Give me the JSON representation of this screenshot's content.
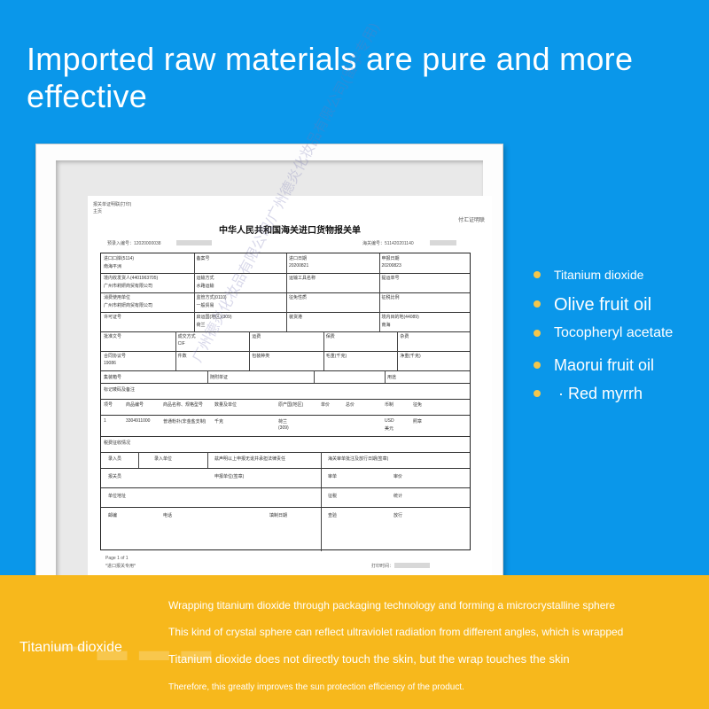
{
  "headline": "Imported raw materials are pure and more effective",
  "document": {
    "corner_note": "报关单证明联(打印)",
    "corner_sub": "主页",
    "right_tag": "付汇证明联",
    "title": "中华人民共和国海关进口货物报关单",
    "pre_entry": "预录入编号：12020000038",
    "customs_no": "海关编号：511420201140",
    "rows": [
      [
        "进口口岸(5114)",
        "备案号",
        "进口日期",
        "申报日期"
      ],
      [
        "南海平洲",
        "",
        "20200821",
        "20200823"
      ],
      [
        "境内收发货人(4401963705)",
        "运输方式",
        "运输工具名称",
        "提运单号"
      ],
      [
        "广州市莉妍商贸有限公司",
        "水路运输",
        "",
        ""
      ],
      [
        "消费使用单位",
        "监管方式(0110)",
        "征免性质",
        "征税比例"
      ],
      [
        "广州市莉妍商贸有限公司",
        "一般贸易",
        "",
        ""
      ],
      [
        "许可证号",
        "启运国(地区)(309)",
        "装货港",
        "境内目的地(44089)"
      ],
      [
        "",
        "荷兰",
        "",
        "南海"
      ],
      [
        "批准文号",
        "成交方式",
        "运费",
        "保费",
        "杂费"
      ],
      [
        "",
        "CIF",
        "",
        "",
        ""
      ],
      [
        "合同协议号",
        "件数",
        "包装种类",
        "毛重(千克)",
        "净重(千克)"
      ],
      [
        "19086",
        "",
        "",
        "",
        ""
      ],
      [
        "集装箱号",
        "随附单证",
        "",
        "用途"
      ],
      [
        "标记唛码及备注",
        "",
        "",
        ""
      ],
      [
        "项号",
        "商品编号",
        "商品名称、规格型号",
        "数量及单位",
        "原产国(地区)",
        "单价",
        "总价",
        "币制",
        "征免"
      ],
      [
        "1",
        "3304911000",
        "普通粉扑(非金盐支制)",
        "千克",
        "荷兰",
        "",
        "",
        "USD",
        "照章"
      ],
      [
        "",
        "",
        "",
        "",
        "(309)",
        "",
        "",
        "美元",
        ""
      ]
    ],
    "footer": {
      "tax": "税费征收情况",
      "entry_person": "录入员",
      "entry_unit": "录入单位",
      "declare": "兹声明以上申报无讹并承担法律责任",
      "review": "海关审单批注及放行日期(签章)",
      "declarer": "报关员",
      "declare_unit": "申报单位(签章)",
      "audit": "审单",
      "price_audit": "审价",
      "unit_addr": "单位地址",
      "tax_collect": "征税",
      "stats": "统计",
      "postcode": "邮编",
      "phone": "电话",
      "fill_date": "填制日期",
      "inspect": "查验",
      "release": "放行",
      "page": "Page 1 of 1",
      "copy": "*进口报关专用*",
      "print_time": "打印时间："
    },
    "watermark": "广州德炎化妆品有限公司/广州德炎化妆品有限公司(留学专用)"
  },
  "ingredients": [
    {
      "label": "Titanium dioxide"
    },
    {
      "label": "Olive fruit oil"
    },
    {
      "label": "Tocopheryl acetate"
    },
    {
      "label": "Maorui fruit oil"
    },
    {
      "label": "· Red myrrh"
    }
  ],
  "banner": {
    "label": "Titanium dioxide",
    "lines": [
      "Wrapping titanium dioxide through packaging technology and forming a microcrystalline sphere",
      "This kind of crystal sphere can reflect ultraviolet radiation from different angles, which is wrapped",
      "Titanium dioxide does not directly touch the skin, but the wrap touches the skin",
      "Therefore, this greatly improves the sun protection efficiency of the product."
    ]
  },
  "colors": {
    "background": "#0a97ea",
    "banner": "#f7b81c",
    "bullet": "#f4c64b",
    "text": "#ffffff"
  }
}
